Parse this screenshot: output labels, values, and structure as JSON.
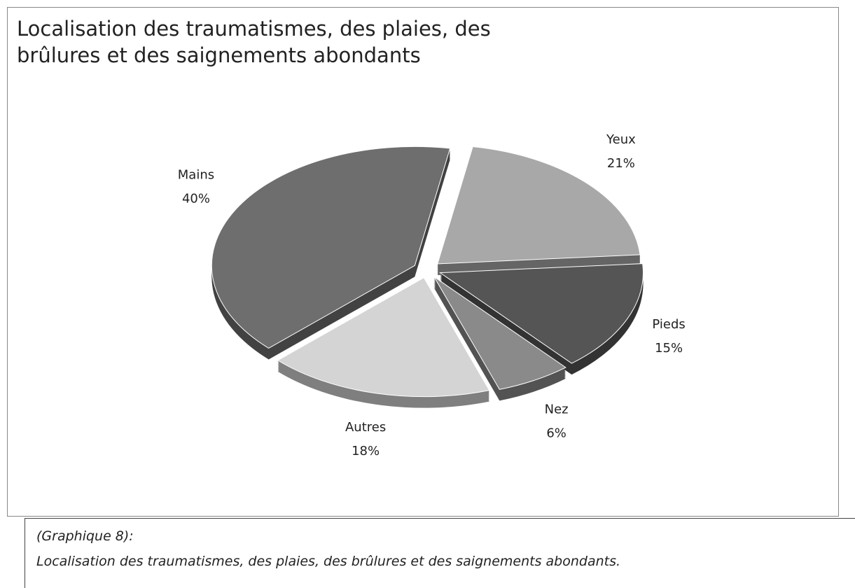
{
  "chart_data": {
    "type": "pie",
    "title": "Localisation des traumatismes, des plaies, des brûlures et des saignements abondants",
    "categories": [
      "Yeux",
      "Pieds",
      "Nez",
      "Autres",
      "Mains"
    ],
    "values": [
      21,
      15,
      6,
      18,
      40
    ],
    "value_labels": [
      "21%",
      "15%",
      "6%",
      "18%",
      "40%"
    ],
    "colors": [
      "#a8a8a8",
      "#555555",
      "#8a8a8a",
      "#d4d4d4",
      "#6e6e6e"
    ]
  },
  "caption": {
    "label": "(Graphique 8):",
    "text": "Localisation des traumatismes, des plaies, des brûlures et des saignements abondants."
  }
}
